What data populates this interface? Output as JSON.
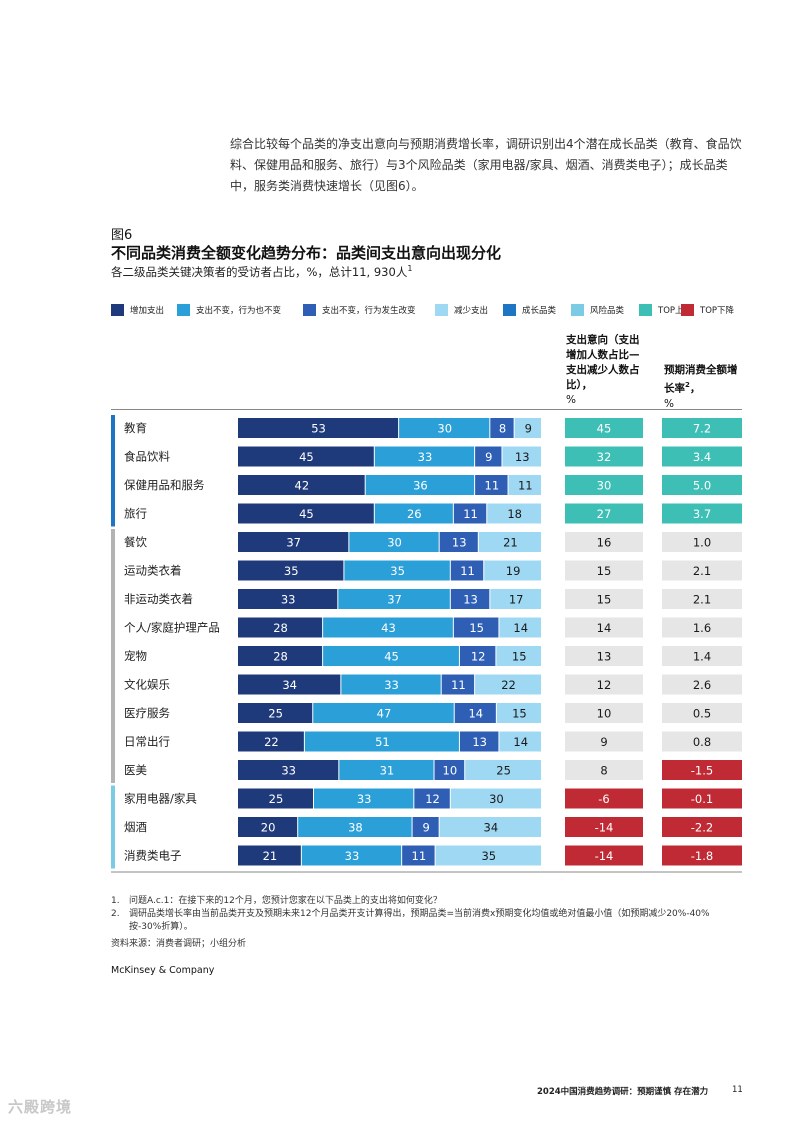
{
  "intro_text": "综合比较每个品类的净支出意向与预期消费增长率，调研识别出4个潜在成长品类（教育、食品饮料、保健用品和服务、旅行）与3个风险品类（家用电器/家具、烟酒、消费类电子）；成长品类中，服务类消费快速增长（见图6）。",
  "figure_label": "图6",
  "figure_title": "不同品类消费全额变化趋势分布：品类间支出意向出现分化",
  "figure_subtitle": "各二级品类关键决策者的受访者占比，%，总计11, 930人",
  "figure_subtitle_sup": "1",
  "legend": [
    {
      "label": "增加支出",
      "color": "#1f3a7a"
    },
    {
      "label": "支出不变，行为也不变",
      "color": "#2a9fd8"
    },
    {
      "label": "支出不变，行为发生改变",
      "color": "#2f5fb5"
    },
    {
      "label": "减少支出",
      "color": "#9fd8f2"
    },
    {
      "label": "成长品类",
      "color": "#1e75c4"
    },
    {
      "label": "风险品类",
      "color": "#7ccbe4"
    },
    {
      "label": "TOP上升",
      "color": "#3ebfb6"
    },
    {
      "label": "TOP下降",
      "color": "#bf2a35"
    }
  ],
  "column_headers": {
    "net_intent": "支出意向（支出增加人数占比—支出减少人数占比），",
    "net_intent_unit": "%",
    "growth": "预期消费全额增长率",
    "growth_sup": "2",
    "growth_unit": "%"
  },
  "chart_data": {
    "type": "bar",
    "orientation": "horizontal-stacked",
    "title": "不同品类消费全额变化趋势分布：品类间支出意向出现分化",
    "series_names": [
      "增加支出",
      "支出不变，行为也不变",
      "支出不变，行为发生改变",
      "减少支出"
    ],
    "xlim": [
      0,
      100
    ],
    "rows": [
      {
        "category": "教育",
        "group": "growth",
        "values": [
          53,
          30,
          8,
          9
        ],
        "net": "45",
        "growth": "7.2",
        "net_style": "up",
        "growth_style": "up"
      },
      {
        "category": "食品饮料",
        "group": "growth",
        "values": [
          45,
          33,
          9,
          13
        ],
        "net": "32",
        "growth": "3.4",
        "net_style": "up",
        "growth_style": "up"
      },
      {
        "category": "保健用品和服务",
        "group": "growth",
        "values": [
          42,
          36,
          11,
          11
        ],
        "net": "30",
        "growth": "5.0",
        "net_style": "up",
        "growth_style": "up"
      },
      {
        "category": "旅行",
        "group": "growth",
        "values": [
          45,
          26,
          11,
          18
        ],
        "net": "27",
        "growth": "3.7",
        "net_style": "up",
        "growth_style": "up"
      },
      {
        "category": "餐饮",
        "group": "neutral",
        "values": [
          37,
          30,
          13,
          21
        ],
        "net": "16",
        "growth": "1.0",
        "net_style": "neutral",
        "growth_style": "neutral"
      },
      {
        "category": "运动类衣着",
        "group": "neutral",
        "values": [
          35,
          35,
          11,
          19
        ],
        "net": "15",
        "growth": "2.1",
        "net_style": "neutral",
        "growth_style": "neutral"
      },
      {
        "category": "非运动类衣着",
        "group": "neutral",
        "values": [
          33,
          37,
          13,
          17
        ],
        "net": "15",
        "growth": "2.1",
        "net_style": "neutral",
        "growth_style": "neutral"
      },
      {
        "category": "个人/家庭护理产品",
        "group": "neutral",
        "values": [
          28,
          43,
          15,
          14
        ],
        "net": "14",
        "growth": "1.6",
        "net_style": "neutral",
        "growth_style": "neutral"
      },
      {
        "category": "宠物",
        "group": "neutral",
        "values": [
          28,
          45,
          12,
          15
        ],
        "net": "13",
        "growth": "1.4",
        "net_style": "neutral",
        "growth_style": "neutral"
      },
      {
        "category": "文化娱乐",
        "group": "neutral",
        "values": [
          34,
          33,
          11,
          22
        ],
        "net": "12",
        "growth": "2.6",
        "net_style": "neutral",
        "growth_style": "neutral"
      },
      {
        "category": "医疗服务",
        "group": "neutral",
        "values": [
          25,
          47,
          14,
          15
        ],
        "net": "10",
        "growth": "0.5",
        "net_style": "neutral",
        "growth_style": "neutral"
      },
      {
        "category": "日常出行",
        "group": "neutral",
        "values": [
          22,
          51,
          13,
          14
        ],
        "net": "9",
        "growth": "0.8",
        "net_style": "neutral",
        "growth_style": "neutral"
      },
      {
        "category": "医美",
        "group": "neutral",
        "values": [
          33,
          31,
          10,
          25
        ],
        "net": "8",
        "growth": "-1.5",
        "net_style": "neutral",
        "growth_style": "down"
      },
      {
        "category": "家用电器/家具",
        "group": "risk",
        "values": [
          25,
          33,
          12,
          30
        ],
        "net": "-6",
        "growth": "-0.1",
        "net_style": "down",
        "growth_style": "down"
      },
      {
        "category": "烟酒",
        "group": "risk",
        "values": [
          20,
          38,
          9,
          34
        ],
        "net": "-14",
        "growth": "-2.2",
        "net_style": "down",
        "growth_style": "down"
      },
      {
        "category": "消费类电子",
        "group": "risk",
        "values": [
          21,
          33,
          11,
          35
        ],
        "net": "-14",
        "growth": "-1.8",
        "net_style": "down",
        "growth_style": "down"
      }
    ]
  },
  "colors": {
    "series": [
      "#1f3a7a",
      "#2a9fd8",
      "#2f5fb5",
      "#9fd8f2"
    ],
    "group_bar": {
      "growth": "#1e75c4",
      "neutral": "#b3b3b3",
      "risk": "#7ccbe4"
    },
    "cell": {
      "up": "#3ebfb6",
      "down": "#bf2a35",
      "neutral": "#e6e6e6"
    }
  },
  "footnotes": [
    {
      "num": "1.",
      "text": "问题A.c.1：在接下来的12个月，您预计您家在以下品类上的支出将如何变化？"
    },
    {
      "num": "2.",
      "text": "调研品类增长率由当前品类开支及预期未来12个月品类开支计算得出，预期品类=当前消费x预期变化均值或绝对值最小值（如预期减少20%-40%按-30%折算）。"
    }
  ],
  "source": "资料来源：消费者调研；小组分析",
  "brand": "McKinsey & Company",
  "page_footer": "2024中国消费趋势调研：预期谨慎 存在潜力",
  "page_number": "11",
  "watermark": "六殿跨境"
}
